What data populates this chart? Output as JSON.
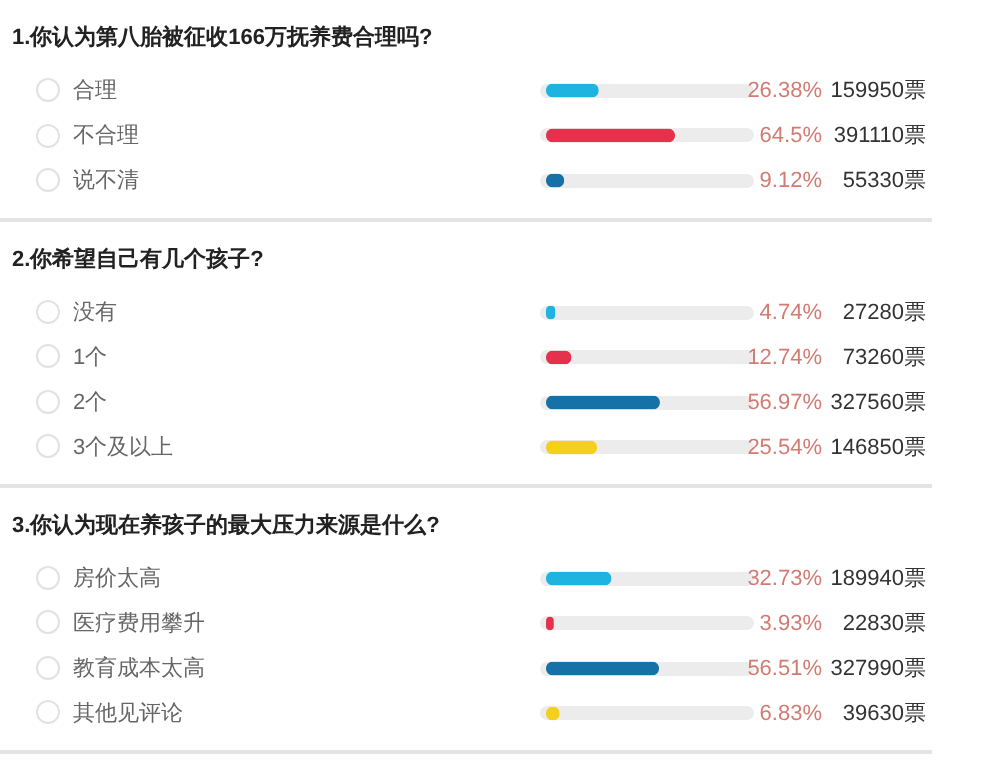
{
  "chart_data": [
    {
      "type": "bar",
      "orientation": "horizontal",
      "title": "1.你认为第八胎被征收166万抚养费合理吗?",
      "categories": [
        "合理",
        "不合理",
        "说不清"
      ],
      "values": [
        26.38,
        64.5,
        9.12
      ],
      "colors": [
        "#1fb3e0",
        "#e5314b",
        "#1672a6"
      ],
      "value_labels": [
        "26.38%",
        "64.5%",
        "9.12%"
      ],
      "annotations": [
        "159950票",
        "391110票",
        "55330票"
      ],
      "xlim": [
        0,
        100
      ],
      "grid": "y"
    },
    {
      "type": "bar",
      "orientation": "horizontal",
      "title": "2.你希望自己有几个孩子?",
      "categories": [
        "没有",
        "1个",
        "2个",
        "3个及以上"
      ],
      "values": [
        4.74,
        12.74,
        56.97,
        25.54
      ],
      "colors": [
        "#1fb3e0",
        "#e5314b",
        "#1672a6",
        "#f4cf1c"
      ],
      "value_labels": [
        "4.74%",
        "12.74%",
        "56.97%",
        "25.54%"
      ],
      "annotations": [
        "27280票",
        "73260票",
        "327560票",
        "146850票"
      ],
      "xlim": [
        0,
        100
      ],
      "grid": "y"
    },
    {
      "type": "bar",
      "orientation": "horizontal",
      "title": "3.你认为现在养孩子的最大压力来源是什么?",
      "categories": [
        "房价太高",
        "医疗费用攀升",
        "教育成本太高",
        "其他见评论"
      ],
      "values": [
        32.73,
        3.93,
        56.51,
        6.83
      ],
      "colors": [
        "#1fb3e0",
        "#e5314b",
        "#1672a6",
        "#f4cf1c"
      ],
      "value_labels": [
        "32.73%",
        "3.93%",
        "56.51%",
        "6.83%"
      ],
      "annotations": [
        "189940票",
        "22830票",
        "327990票",
        "39630票"
      ],
      "xlim": [
        0,
        100
      ],
      "grid": "y"
    }
  ]
}
